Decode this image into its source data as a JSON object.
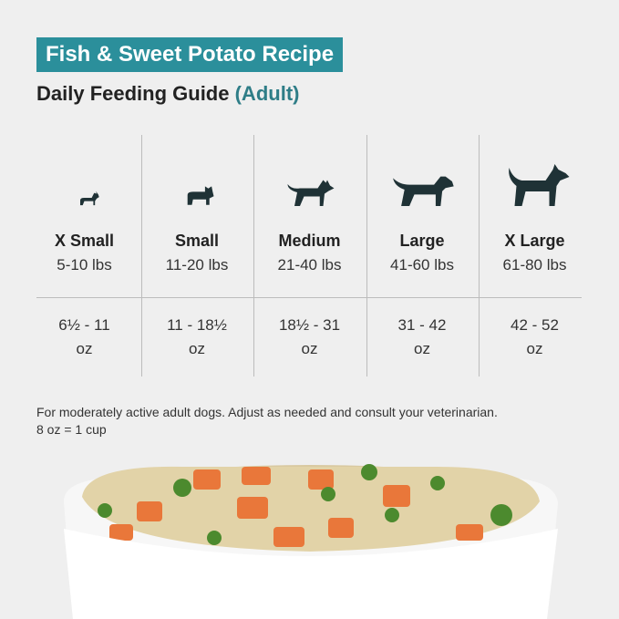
{
  "header": {
    "title": "Fish & Sweet Potato Recipe",
    "subtitle": "Daily Feeding Guide",
    "qualifier": "(Adult)"
  },
  "table": {
    "columns": [
      {
        "size": "X Small",
        "weight": "5-10 lbs",
        "amount": "6½ - 11",
        "unit": "oz"
      },
      {
        "size": "Small",
        "weight": "11-20 lbs",
        "amount": "11 - 18½",
        "unit": "oz"
      },
      {
        "size": "Medium",
        "weight": "21-40 lbs",
        "amount": "18½ - 31",
        "unit": "oz"
      },
      {
        "size": "Large",
        "weight": "41-60 lbs",
        "amount": "31 - 42",
        "unit": "oz"
      },
      {
        "size": "X Large",
        "weight": "61-80 lbs",
        "amount": "42 - 52",
        "unit": "oz"
      }
    ]
  },
  "notes": [
    "For moderately active adult dogs. Adjust as needed and consult your veterinarian.",
    "8 oz = 1 cup"
  ]
}
